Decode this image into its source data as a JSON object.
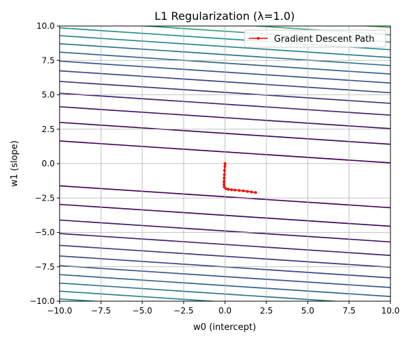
{
  "chart_data": {
    "type": "line",
    "title": "L1 Regularization (λ=1.0)",
    "xlabel": "w0 (intercept)",
    "ylabel": "w1 (slope)",
    "xlim": [
      -10,
      10
    ],
    "ylim": [
      -10,
      10
    ],
    "xticks": [
      -10,
      -7.5,
      -5,
      -2.5,
      0,
      2.5,
      5,
      7.5,
      10
    ],
    "xtick_labels": [
      "−10.0",
      "−7.5",
      "−5.0",
      "−2.5",
      "0.0",
      "2.5",
      "5.0",
      "7.5",
      "10.0"
    ],
    "yticks": [
      -10,
      -7.5,
      -5,
      -2.5,
      0,
      2.5,
      5,
      7.5,
      10
    ],
    "ytick_labels": [
      "−10.0",
      "−7.5",
      "−5.0",
      "−2.5",
      "0.0",
      "2.5",
      "5.0",
      "7.5",
      "10.0"
    ],
    "grid": true,
    "legend_position": "top-right",
    "contour": {
      "slope": -0.0795,
      "center_intercept": -0.78,
      "spacing_near": 1.63,
      "spacing_far": 0.5,
      "levels": 44,
      "colormap": [
        "#440154",
        "#3b528b",
        "#21918c",
        "#5ec962",
        "#fde725"
      ]
    },
    "series": [
      {
        "name": "Gradient Descent Path",
        "color": "#ff0000",
        "marker": "dot",
        "x": [
          1.85,
          1.6,
          1.35,
          1.1,
          0.85,
          0.6,
          0.4,
          0.2,
          0.05,
          -0.05,
          -0.06,
          -0.06,
          -0.05,
          -0.04,
          -0.03,
          -0.01,
          0.0
        ],
        "y": [
          -2.1,
          -2.06,
          -2.02,
          -1.98,
          -1.95,
          -1.92,
          -1.9,
          -1.87,
          -1.82,
          -1.7,
          -1.5,
          -1.3,
          -1.05,
          -0.8,
          -0.5,
          -0.2,
          0.0
        ]
      }
    ]
  }
}
